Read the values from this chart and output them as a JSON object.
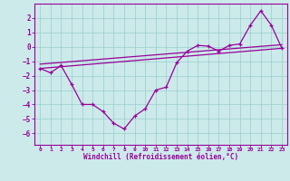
{
  "xlabel": "Windchill (Refroidissement éolien,°C)",
  "xlim": [
    -0.5,
    23.5
  ],
  "ylim": [
    -6.8,
    3.0
  ],
  "yticks": [
    2,
    1,
    0,
    -1,
    -2,
    -3,
    -4,
    -5,
    -6
  ],
  "xticks": [
    0,
    1,
    2,
    3,
    4,
    5,
    6,
    7,
    8,
    9,
    10,
    11,
    12,
    13,
    14,
    15,
    16,
    17,
    18,
    19,
    20,
    21,
    22,
    23
  ],
  "bg_color": "#cceaea",
  "grid_color": "#99cccc",
  "line_color": "#990099",
  "main_data_x": [
    0,
    1,
    2,
    3,
    4,
    5,
    6,
    7,
    8,
    9,
    10,
    11,
    12,
    13,
    14,
    15,
    16,
    17,
    18,
    19,
    20,
    21,
    22,
    23
  ],
  "main_data_y": [
    -1.5,
    -1.8,
    -1.3,
    -2.6,
    -4.0,
    -4.0,
    -4.5,
    -5.3,
    -5.7,
    -4.8,
    -4.3,
    -3.0,
    -2.8,
    -1.1,
    -0.3,
    0.1,
    0.05,
    -0.3,
    0.1,
    0.2,
    1.5,
    2.5,
    1.5,
    -0.1
  ],
  "trend1_x": [
    0,
    23
  ],
  "trend1_y": [
    -1.5,
    -0.1
  ],
  "trend2_x": [
    0,
    23
  ],
  "trend2_y": [
    -1.2,
    0.15
  ]
}
